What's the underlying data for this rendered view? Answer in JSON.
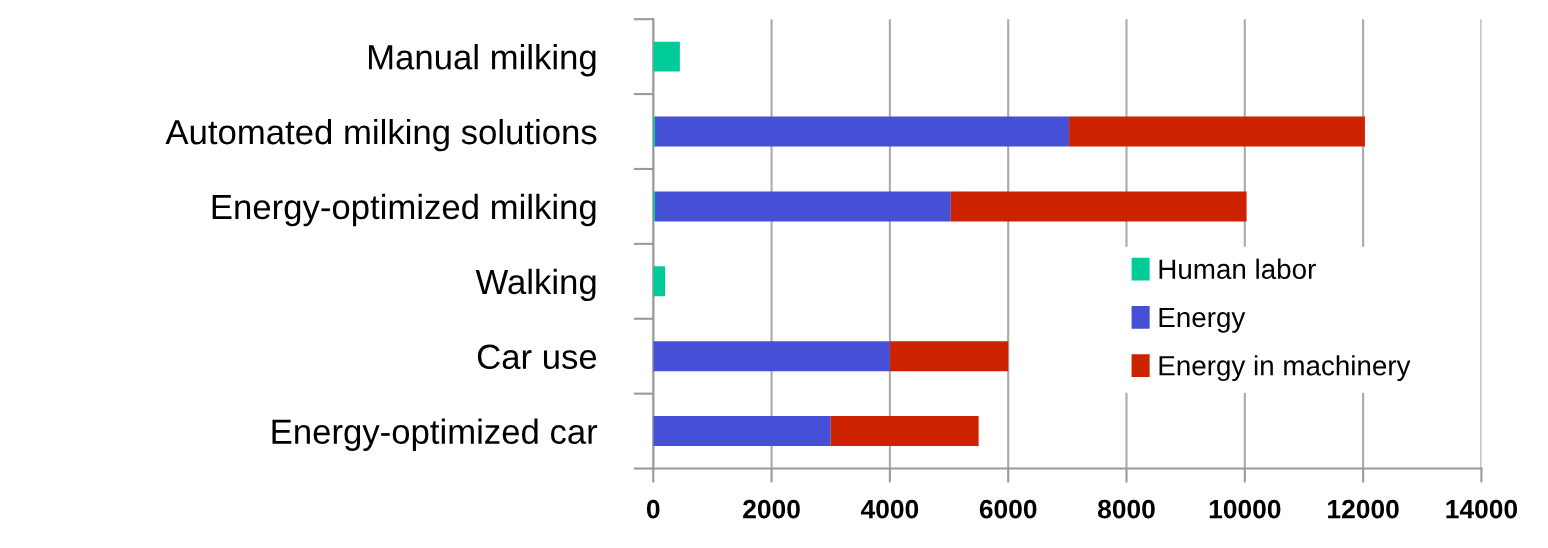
{
  "chart_data": {
    "type": "bar",
    "orientation": "horizontal",
    "stacked": true,
    "categories": [
      "Manual milking",
      "Automated milking solutions",
      "Energy-optimized milking",
      "Walking",
      "Car use",
      "Energy-optimized car"
    ],
    "series": [
      {
        "name": "Human labor",
        "color": "#00cc99",
        "values": [
          450,
          30,
          30,
          200,
          0,
          0
        ]
      },
      {
        "name": "Energy",
        "color": "#4650d6",
        "values": [
          0,
          7000,
          5000,
          0,
          4000,
          3000
        ]
      },
      {
        "name": "Energy in machinery",
        "color": "#cc2200",
        "values": [
          0,
          5000,
          5000,
          0,
          2000,
          2500
        ]
      }
    ],
    "xlim": [
      0,
      14000
    ],
    "xticks": [
      0,
      2000,
      4000,
      6000,
      8000,
      10000,
      12000,
      14000
    ],
    "grid": "x",
    "legend": "bottom right"
  }
}
